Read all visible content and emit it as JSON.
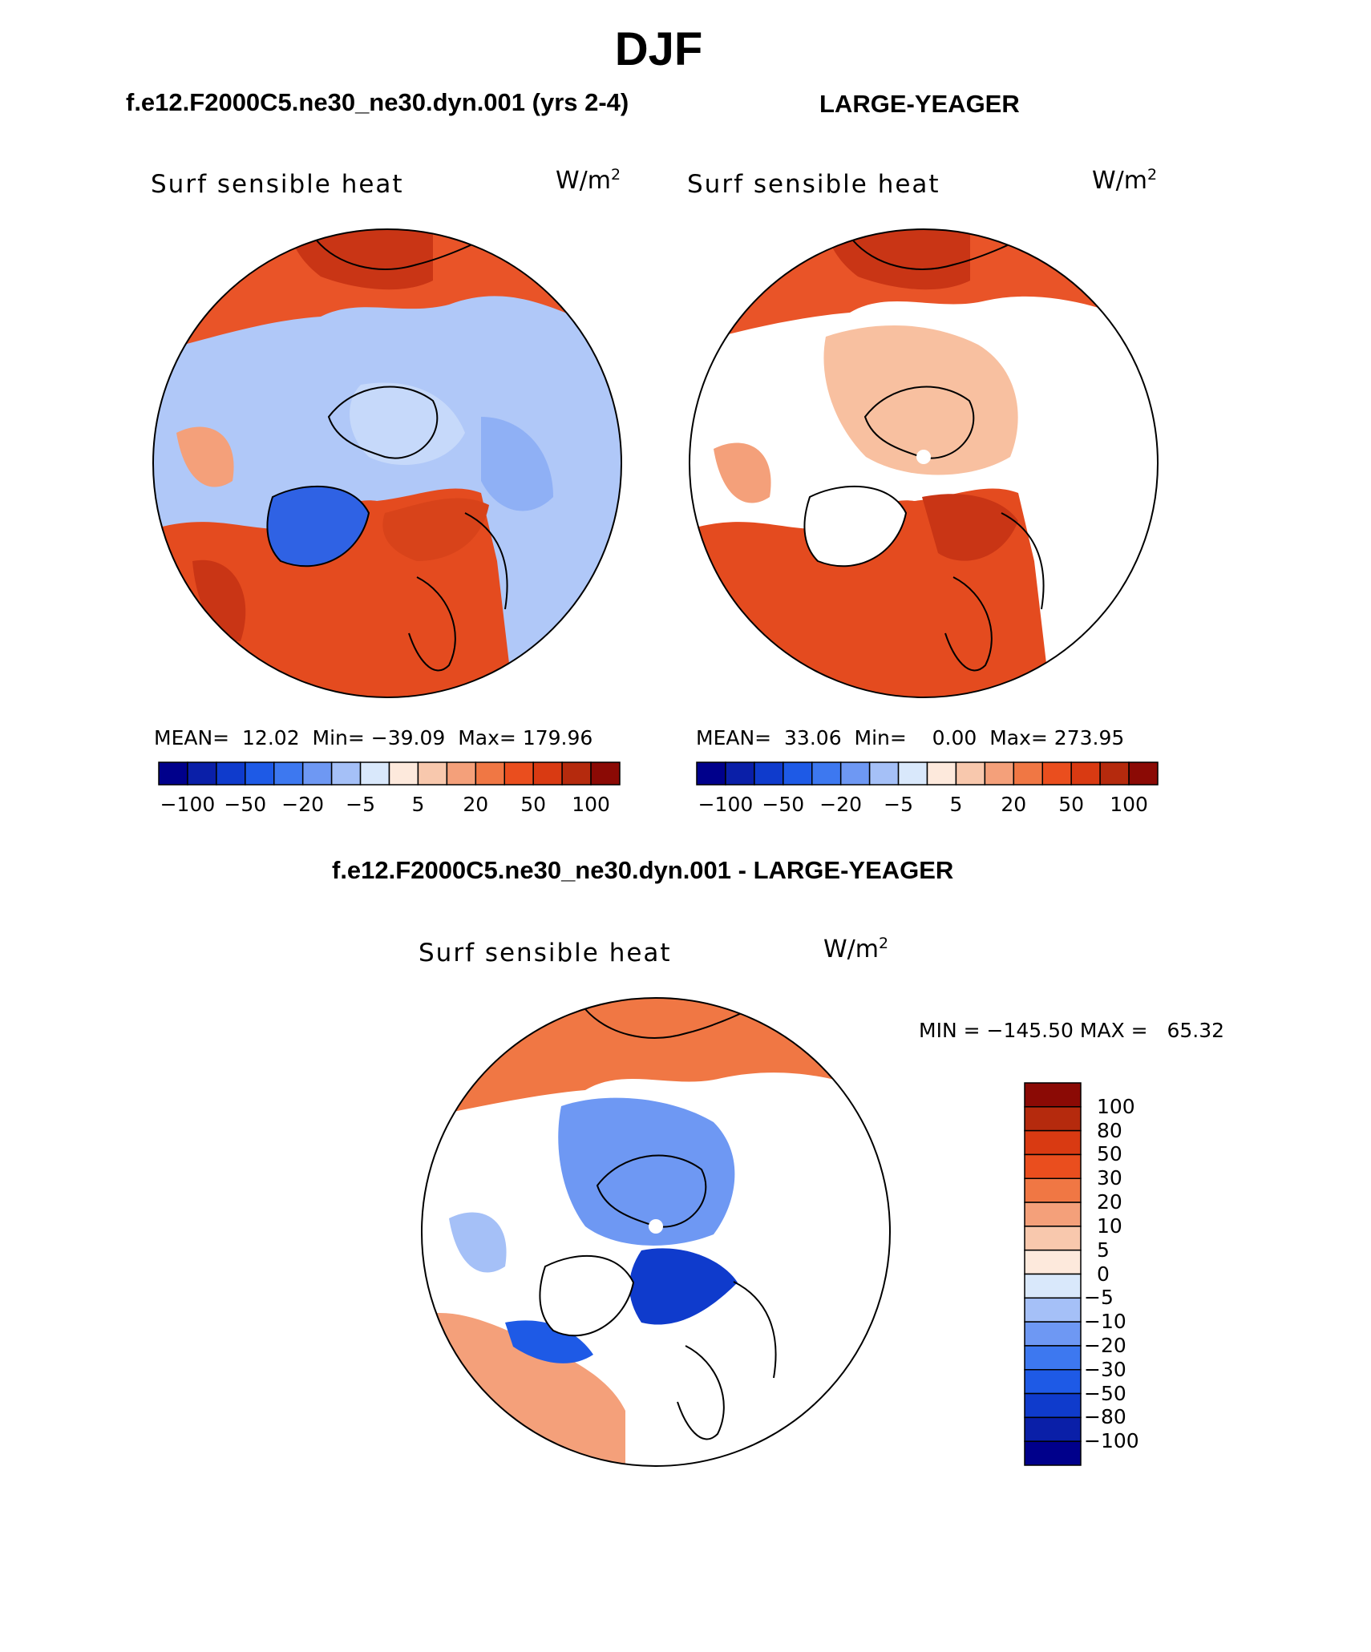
{
  "figure_title": "DJF",
  "variable": "Surf sensible heat",
  "units_base": "W/m",
  "units_exp": "2",
  "panels": [
    {
      "title": "f.e12.F2000C5.ne30_ne30.dyn.001 (yrs 2-4)",
      "stats": {
        "mean_label": "MEAN=",
        "mean": "12.02",
        "min_label": "Min=",
        "min": "−39.09",
        "max_label": "Max=",
        "max": "179.96"
      }
    },
    {
      "title": "LARGE-YEAGER",
      "stats": {
        "mean_label": "MEAN=",
        "mean": "33.06",
        "min_label": "Min=",
        "min": "0.00",
        "max_label": "Max=",
        "max": "273.95"
      }
    },
    {
      "title": "f.e12.F2000C5.ne30_ne30.dyn.001 - LARGE-YEAGER",
      "stats": {
        "min_label": "MIN =",
        "min": "−145.50",
        "max_label": "MAX =",
        "max": "65.32"
      }
    }
  ],
  "horizontal_colorbar": {
    "colors": [
      "#00008b",
      "#0a1fa8",
      "#0f3bcc",
      "#1e5ae6",
      "#3d78f0",
      "#6e98f3",
      "#a5c0f7",
      "#d9e8fb",
      "#fde9dc",
      "#f8c8ad",
      "#f4a07a",
      "#f07744",
      "#ea4e1e",
      "#d93a12",
      "#b52a0d",
      "#8b0a05"
    ],
    "tick_labels": [
      "−100",
      "−50",
      "−20",
      "−5",
      "5",
      "20",
      "50",
      "100"
    ]
  },
  "vertical_colorbar": {
    "colors": [
      "#8b0a05",
      "#b52a0d",
      "#d93a12",
      "#ea4e1e",
      "#f07744",
      "#f4a07a",
      "#f8c8ad",
      "#fde9dc",
      "#d9e8fb",
      "#a5c0f7",
      "#6e98f3",
      "#3d78f0",
      "#1e5ae6",
      "#0f3bcc",
      "#0a1fa8",
      "#00008b"
    ],
    "tick_labels": [
      "100",
      "80",
      "50",
      "30",
      "20",
      "10",
      "5",
      "0",
      "−5",
      "−10",
      "−20",
      "−30",
      "−50",
      "−80",
      "−100"
    ]
  },
  "chart_data": [
    {
      "type": "heatmap",
      "title": "f.e12.F2000C5.ne30_ne30.dyn.001 (yrs 2-4)",
      "variable": "Surf sensible heat",
      "units": "W/m2",
      "projection": "north polar stereographic",
      "mean": 12.02,
      "min": -39.09,
      "max": 179.96,
      "levels": [
        -100,
        -80,
        -50,
        -30,
        -20,
        -10,
        -5,
        0,
        5,
        10,
        20,
        30,
        50,
        80,
        100
      ]
    },
    {
      "type": "heatmap",
      "title": "LARGE-YEAGER",
      "variable": "Surf sensible heat",
      "units": "W/m2",
      "projection": "north polar stereographic",
      "mean": 33.06,
      "min": 0.0,
      "max": 273.95,
      "levels": [
        -100,
        -80,
        -50,
        -30,
        -20,
        -10,
        -5,
        0,
        5,
        10,
        20,
        30,
        50,
        80,
        100
      ]
    },
    {
      "type": "heatmap",
      "title": "f.e12.F2000C5.ne30_ne30.dyn.001 - LARGE-YEAGER",
      "variable": "Surf sensible heat",
      "units": "W/m2",
      "projection": "north polar stereographic",
      "min": -145.5,
      "max": 65.32,
      "levels": [
        -100,
        -80,
        -50,
        -30,
        -20,
        -10,
        -5,
        0,
        5,
        10,
        20,
        30,
        50,
        80,
        100
      ]
    }
  ]
}
